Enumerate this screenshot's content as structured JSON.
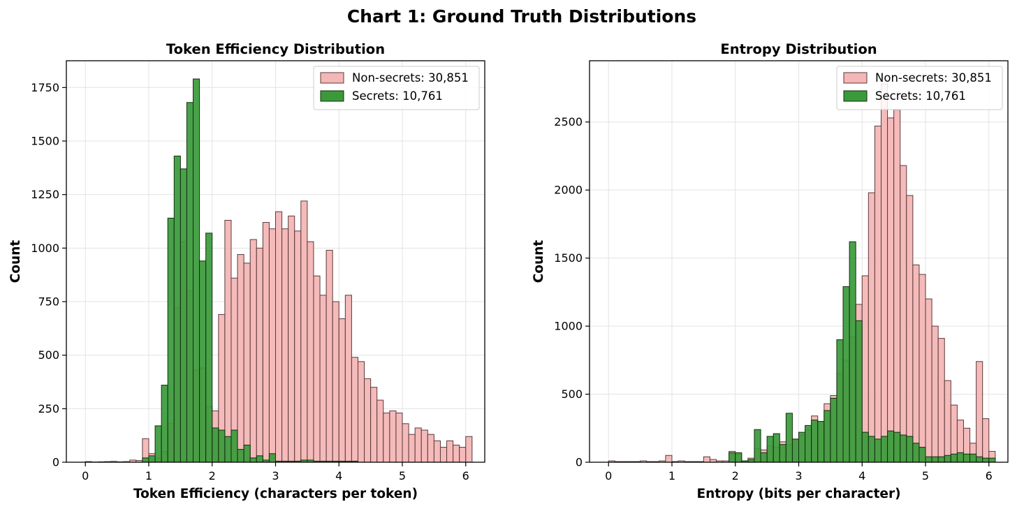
{
  "figure_title": "Chart 1: Ground Truth Distributions",
  "colors": {
    "nonsecrets_fill": "#f4b6b6",
    "nonsecrets_edge": "#5a3a3a",
    "secrets_fill": "#3a9a3a",
    "secrets_edge": "#0f2f0f",
    "grid": "#e3e3e3",
    "axes": "#000000"
  },
  "chart_data": [
    {
      "type": "histogram",
      "title": "Token Efficiency Distribution",
      "xlabel": "Token Efficiency (characters per token)",
      "ylabel": "Count",
      "xlim": [
        -0.3,
        6.3
      ],
      "ylim": [
        0,
        1875
      ],
      "xticks": [
        0,
        1,
        2,
        3,
        4,
        5,
        6
      ],
      "yticks": [
        0,
        250,
        500,
        750,
        1000,
        1250,
        1500,
        1750
      ],
      "bin_start": 0,
      "bin_width": 0.1,
      "grid": true,
      "legend_position": "top-right",
      "series": [
        {
          "name": "Non-secrets: 30,851",
          "key": "nonsecrets",
          "values": [
            3,
            1,
            2,
            3,
            4,
            2,
            3,
            10,
            8,
            110,
            40,
            20,
            50,
            180,
            720,
            1030,
            800,
            430,
            440,
            260,
            240,
            690,
            1130,
            860,
            970,
            930,
            1040,
            1000,
            1120,
            1090,
            1170,
            1090,
            1150,
            1080,
            1220,
            1030,
            870,
            780,
            990,
            750,
            670,
            780,
            490,
            470,
            390,
            350,
            290,
            230,
            240,
            230,
            180,
            130,
            160,
            150,
            130,
            100,
            70,
            100,
            80,
            70,
            120
          ]
        },
        {
          "name": "Secrets: 10,761",
          "key": "secrets",
          "values": [
            0,
            0,
            0,
            0,
            0,
            0,
            0,
            0,
            0,
            20,
            30,
            170,
            360,
            1140,
            1430,
            1370,
            1680,
            1790,
            940,
            1070,
            160,
            150,
            120,
            150,
            60,
            80,
            20,
            30,
            10,
            40,
            5,
            5,
            5,
            5,
            10,
            10,
            5,
            5,
            5,
            5,
            5,
            5,
            5,
            0,
            0,
            0,
            0,
            0,
            0,
            0,
            0,
            0,
            0,
            0,
            0,
            0,
            0,
            0,
            0,
            0,
            0
          ]
        }
      ]
    },
    {
      "type": "histogram",
      "title": "Entropy Distribution",
      "xlabel": "Entropy (bits per character)",
      "ylabel": "Count",
      "xlim": [
        -0.3,
        6.3
      ],
      "ylim": [
        0,
        2950
      ],
      "xticks": [
        0,
        1,
        2,
        3,
        4,
        5,
        6
      ],
      "yticks": [
        0,
        500,
        1000,
        1500,
        2000,
        2500
      ],
      "bin_start": 0,
      "bin_width": 0.1,
      "grid": true,
      "legend_position": "top-right",
      "series": [
        {
          "name": "Non-secrets: 30,851",
          "key": "nonsecrets",
          "values": [
            10,
            5,
            5,
            5,
            5,
            10,
            5,
            5,
            10,
            50,
            5,
            10,
            5,
            5,
            5,
            40,
            20,
            10,
            10,
            80,
            60,
            10,
            30,
            100,
            90,
            120,
            110,
            150,
            130,
            170,
            200,
            240,
            340,
            300,
            430,
            490,
            650,
            750,
            920,
            1160,
            1370,
            1980,
            2470,
            2780,
            2530,
            2590,
            2180,
            1960,
            1450,
            1380,
            1200,
            1000,
            910,
            600,
            420,
            310,
            250,
            140,
            740,
            320,
            80
          ]
        },
        {
          "name": "Secrets: 10,761",
          "key": "secrets",
          "values": [
            0,
            0,
            0,
            0,
            0,
            0,
            0,
            0,
            0,
            0,
            0,
            0,
            0,
            0,
            0,
            0,
            0,
            0,
            0,
            70,
            70,
            10,
            20,
            240,
            70,
            190,
            210,
            130,
            360,
            170,
            220,
            270,
            310,
            300,
            380,
            470,
            900,
            1290,
            1620,
            1040,
            220,
            190,
            170,
            190,
            230,
            220,
            200,
            190,
            140,
            110,
            40,
            40,
            40,
            50,
            60,
            70,
            60,
            60,
            40,
            30,
            30
          ]
        }
      ]
    }
  ]
}
